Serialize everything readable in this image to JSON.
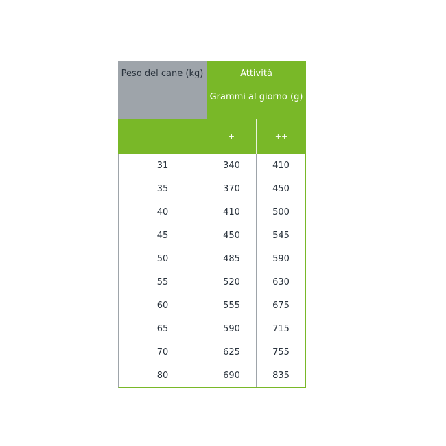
{
  "header": {
    "weight": "Peso del cane (kg)",
    "activity": "Attività",
    "grams": "Grammi al giorno (g)",
    "levels": [
      "+",
      "++"
    ]
  },
  "rows": [
    [
      "31",
      "340",
      "410"
    ],
    [
      "35",
      "370",
      "450"
    ],
    [
      "40",
      "410",
      "500"
    ],
    [
      "45",
      "450",
      "545"
    ],
    [
      "50",
      "485",
      "590"
    ],
    [
      "55",
      "520",
      "630"
    ],
    [
      "60",
      "555",
      "675"
    ],
    [
      "65",
      "590",
      "715"
    ],
    [
      "70",
      "625",
      "755"
    ],
    [
      "80",
      "690",
      "835"
    ]
  ],
  "colors": {
    "green": "#79b828",
    "grey": "#9ea4aa"
  }
}
